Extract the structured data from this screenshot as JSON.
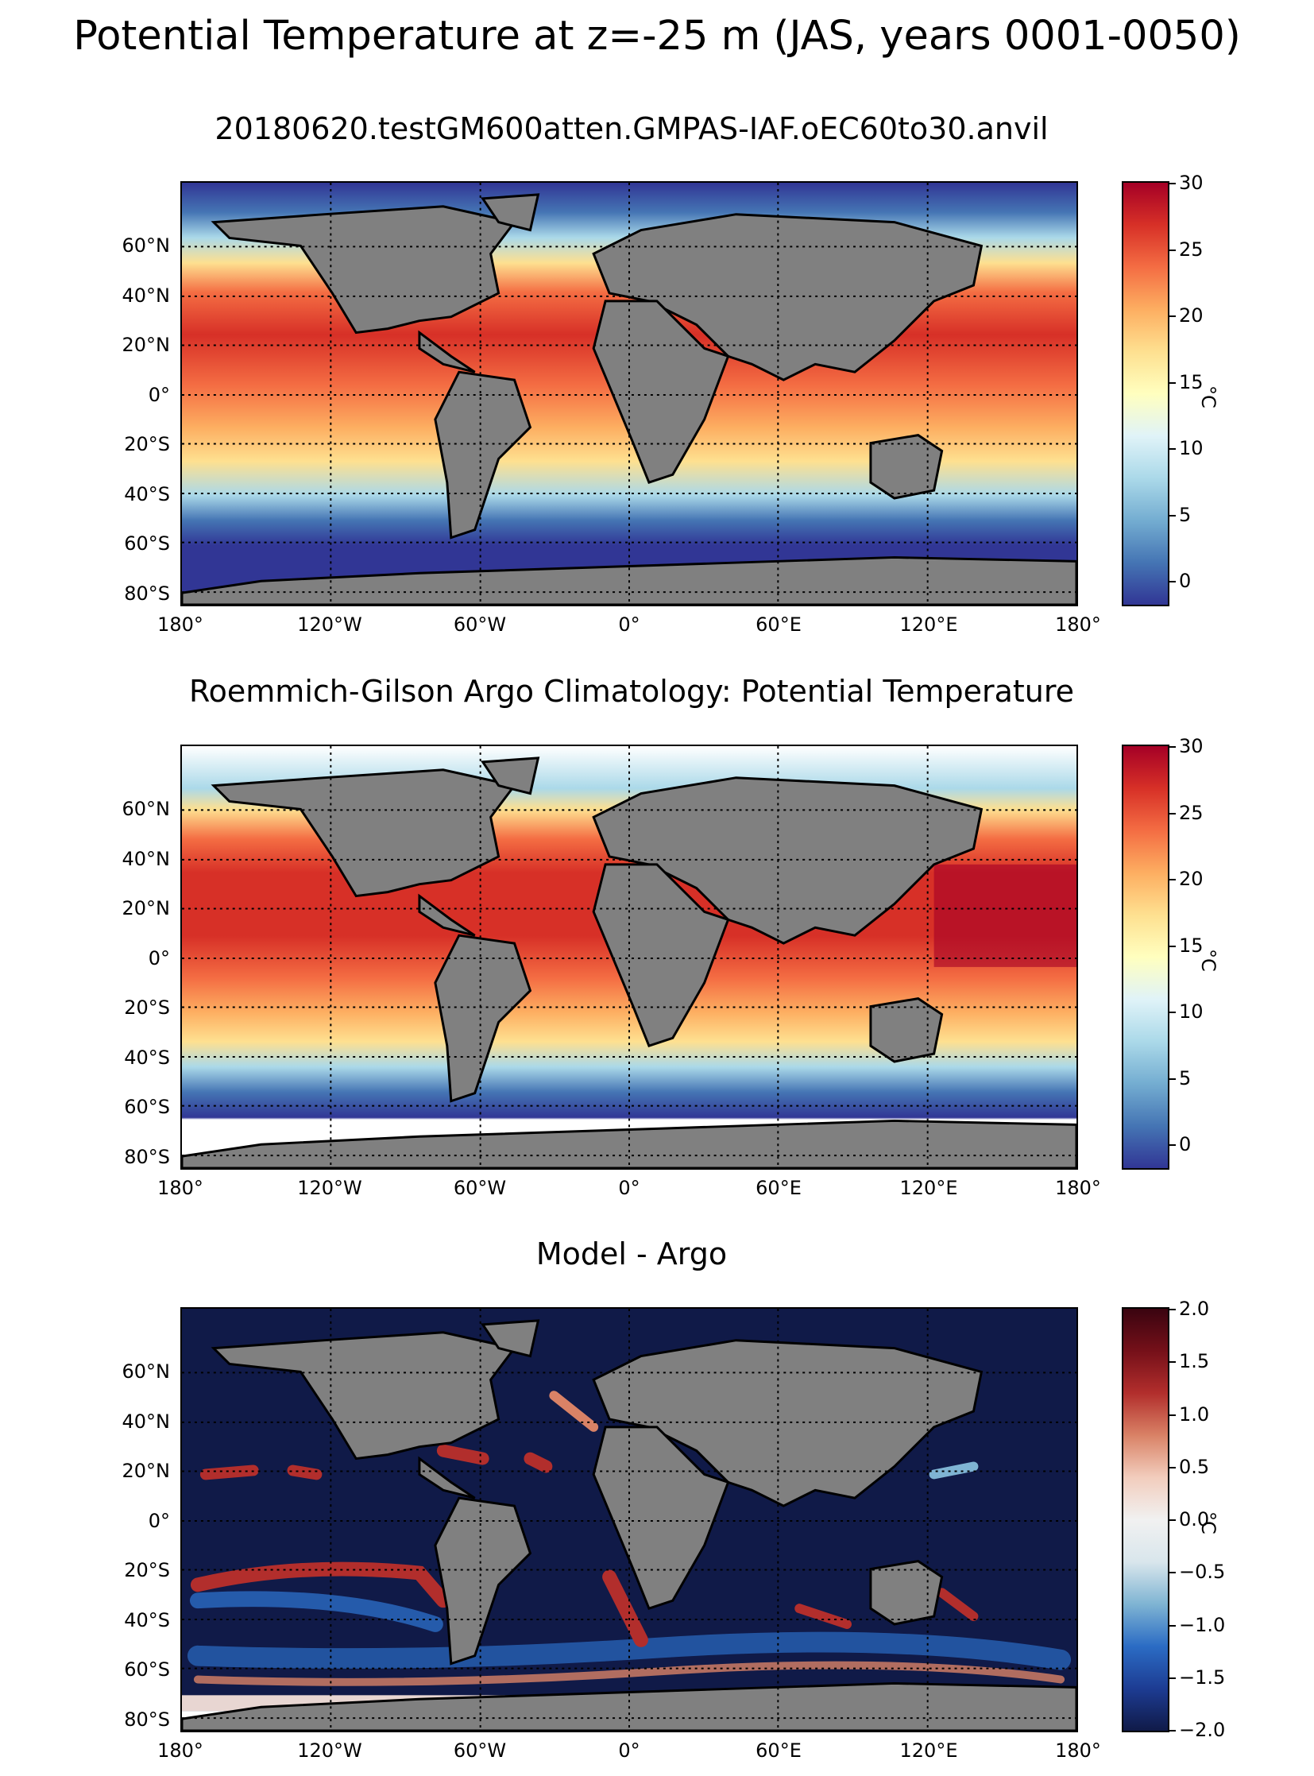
{
  "figure": {
    "suptitle": "Potential Temperature at z=-25 m (JAS, years 0001-0050)"
  },
  "lat_ticks": [
    "60°N",
    "40°N",
    "20°N",
    "0°",
    "20°S",
    "40°S",
    "60°S",
    "80°S"
  ],
  "lon_ticks": [
    "180°",
    "120°W",
    "60°W",
    "0°",
    "60°E",
    "120°E",
    "180°"
  ],
  "panels": [
    {
      "title": "20180620.testGM600atten.GMPAS-IAF.oEC60to30.anvil",
      "colorbar_ticks": [
        "30",
        "25",
        "20",
        "15",
        "10",
        "5",
        "0"
      ],
      "colorbar_label": "°C",
      "colorbar_range": [
        -2,
        30
      ],
      "colormap": "temperature"
    },
    {
      "title": "Roemmich-Gilson Argo Climatology: Potential Temperature",
      "colorbar_ticks": [
        "30",
        "25",
        "20",
        "15",
        "10",
        "5",
        "0"
      ],
      "colorbar_label": "°C",
      "colorbar_range": [
        -2,
        30
      ],
      "colormap": "temperature"
    },
    {
      "title": "Model - Argo",
      "colorbar_ticks": [
        "2.0",
        "1.5",
        "1.0",
        "0.5",
        "0.0",
        "−0.5",
        "−1.0",
        "−1.5",
        "−2.0"
      ],
      "colorbar_label": "°C",
      "colorbar_range": [
        -2,
        2
      ],
      "colormap": "difference"
    }
  ],
  "colors": {
    "land": "#808080",
    "warm": "#a50026",
    "cold": "#313695",
    "diff_low": "#101a48",
    "diff_high": "#3a0410"
  }
}
